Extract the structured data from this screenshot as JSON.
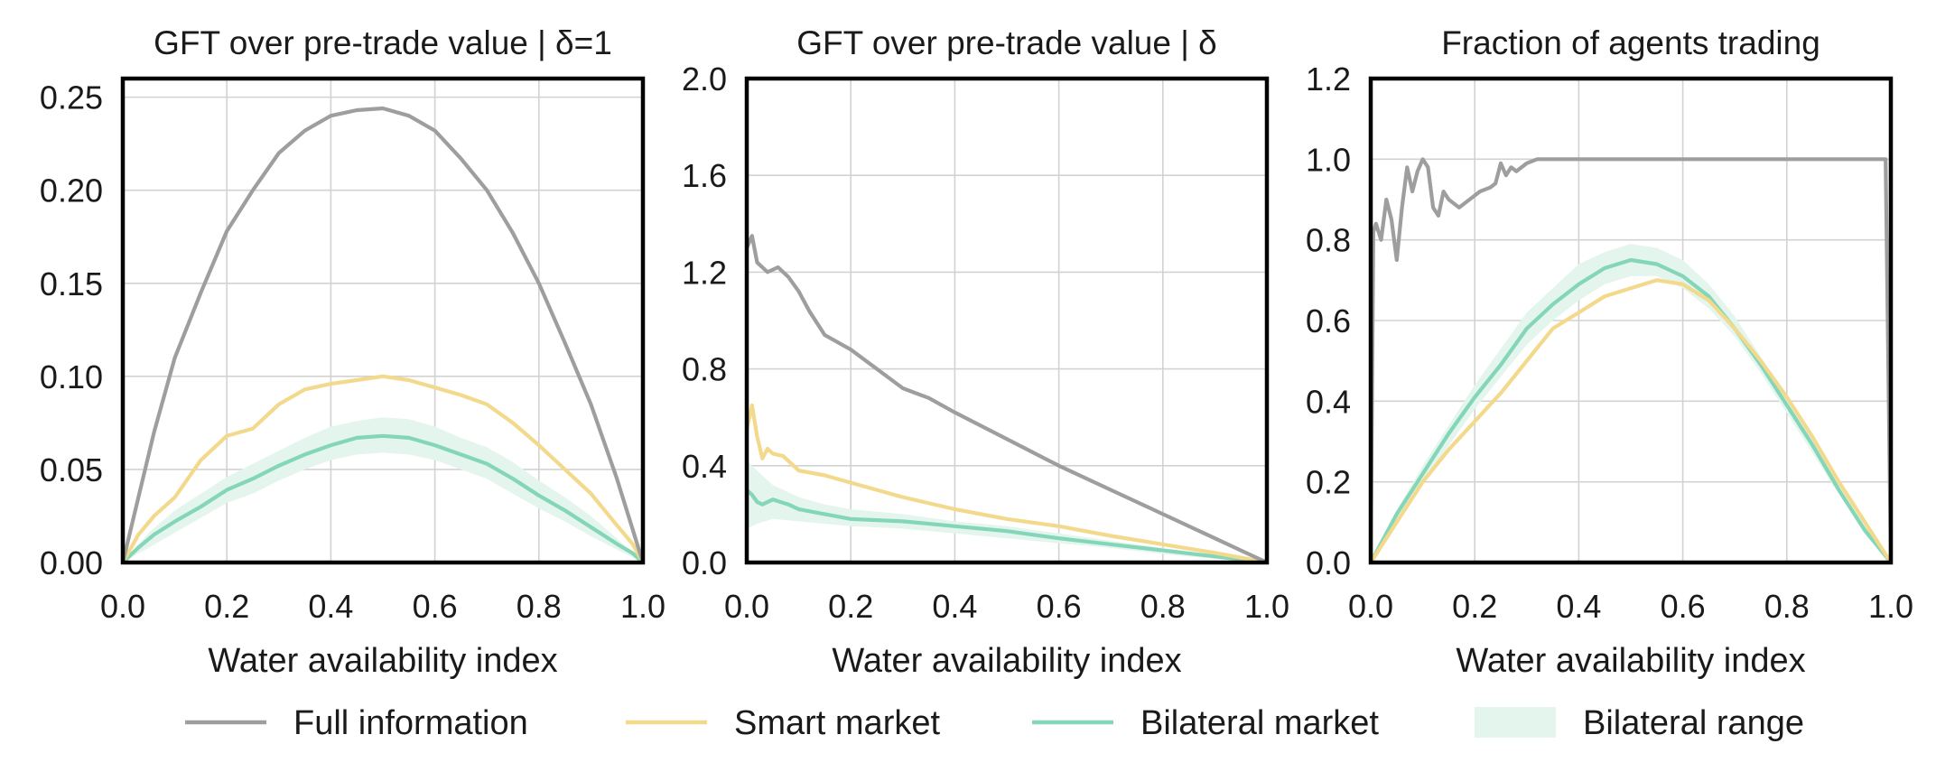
{
  "figure": {
    "xlabel": "Water availability index",
    "legend": [
      {
        "key": "full",
        "label": "Full information",
        "kind": "line"
      },
      {
        "key": "smart",
        "label": "Smart market",
        "kind": "line"
      },
      {
        "key": "bilateral",
        "label": "Bilateral market",
        "kind": "line"
      },
      {
        "key": "range",
        "label": "Bilateral range",
        "kind": "patch"
      }
    ]
  },
  "colors": {
    "full": "#9e9e9e",
    "smart": "#f3d98b",
    "bilateral": "#84d6b8",
    "range": "#e4f5ee",
    "grid": "#d2d2d2",
    "frame": "#000000"
  },
  "chart_data": [
    {
      "type": "line",
      "title": "GFT over pre-trade value | δ=1",
      "xlabel": "Water availability index",
      "xlim": [
        0,
        1
      ],
      "ylim": [
        0,
        0.26
      ],
      "xticks": [
        0.0,
        0.2,
        0.4,
        0.6,
        0.8,
        1.0
      ],
      "xtick_labels": [
        "0.0",
        "0.2",
        "0.4",
        "0.6",
        "0.8",
        "1.0"
      ],
      "yticks": [
        0.0,
        0.05,
        0.1,
        0.15,
        0.2,
        0.25
      ],
      "ytick_labels": [
        "0.00",
        "0.05",
        "0.10",
        "0.15",
        "0.20",
        "0.25"
      ],
      "grid": true,
      "series": [
        {
          "key": "full",
          "name": "Full information",
          "x": [
            0.0,
            0.03,
            0.06,
            0.1,
            0.15,
            0.2,
            0.25,
            0.3,
            0.35,
            0.4,
            0.45,
            0.5,
            0.55,
            0.6,
            0.65,
            0.7,
            0.75,
            0.8,
            0.85,
            0.9,
            0.95,
            0.98,
            1.0
          ],
          "y": [
            0.0,
            0.035,
            0.07,
            0.11,
            0.145,
            0.178,
            0.2,
            0.22,
            0.232,
            0.24,
            0.243,
            0.244,
            0.24,
            0.232,
            0.217,
            0.2,
            0.177,
            0.15,
            0.118,
            0.085,
            0.045,
            0.018,
            0.0
          ]
        },
        {
          "key": "smart",
          "name": "Smart market",
          "x": [
            0.0,
            0.03,
            0.06,
            0.1,
            0.15,
            0.2,
            0.25,
            0.3,
            0.35,
            0.4,
            0.45,
            0.5,
            0.55,
            0.6,
            0.65,
            0.7,
            0.75,
            0.8,
            0.85,
            0.9,
            0.95,
            0.98,
            1.0
          ],
          "y": [
            0.0,
            0.015,
            0.025,
            0.035,
            0.055,
            0.068,
            0.072,
            0.085,
            0.093,
            0.096,
            0.098,
            0.1,
            0.098,
            0.094,
            0.09,
            0.085,
            0.075,
            0.063,
            0.05,
            0.037,
            0.02,
            0.01,
            0.0
          ]
        },
        {
          "key": "bilateral",
          "name": "Bilateral market",
          "x": [
            0.0,
            0.03,
            0.06,
            0.1,
            0.15,
            0.2,
            0.25,
            0.3,
            0.35,
            0.4,
            0.45,
            0.5,
            0.55,
            0.6,
            0.65,
            0.7,
            0.75,
            0.8,
            0.85,
            0.9,
            0.95,
            0.98,
            1.0
          ],
          "y": [
            0.0,
            0.008,
            0.015,
            0.022,
            0.03,
            0.039,
            0.045,
            0.052,
            0.058,
            0.063,
            0.067,
            0.068,
            0.067,
            0.063,
            0.058,
            0.053,
            0.045,
            0.036,
            0.028,
            0.019,
            0.01,
            0.005,
            0.0
          ]
        },
        {
          "key": "range",
          "name": "Bilateral range",
          "kind": "band",
          "x": [
            0.0,
            0.05,
            0.1,
            0.15,
            0.2,
            0.25,
            0.3,
            0.35,
            0.4,
            0.45,
            0.5,
            0.55,
            0.6,
            0.65,
            0.7,
            0.75,
            0.8,
            0.85,
            0.9,
            0.95,
            1.0
          ],
          "low": [
            0.0,
            0.008,
            0.016,
            0.024,
            0.032,
            0.037,
            0.044,
            0.05,
            0.055,
            0.058,
            0.059,
            0.058,
            0.055,
            0.05,
            0.045,
            0.037,
            0.029,
            0.022,
            0.014,
            0.007,
            0.0
          ],
          "high": [
            0.0,
            0.016,
            0.028,
            0.037,
            0.046,
            0.053,
            0.06,
            0.067,
            0.073,
            0.076,
            0.078,
            0.077,
            0.073,
            0.067,
            0.062,
            0.054,
            0.044,
            0.035,
            0.025,
            0.013,
            0.0
          ]
        }
      ]
    },
    {
      "type": "line",
      "title": "GFT over pre-trade value | δ",
      "xlabel": "Water availability index",
      "xlim": [
        0,
        1
      ],
      "ylim": [
        0,
        2.0
      ],
      "xticks": [
        0.0,
        0.2,
        0.4,
        0.6,
        0.8,
        1.0
      ],
      "xtick_labels": [
        "0.0",
        "0.2",
        "0.4",
        "0.6",
        "0.8",
        "1.0"
      ],
      "yticks": [
        0.0,
        0.4,
        0.8,
        1.2,
        1.6,
        2.0
      ],
      "ytick_labels": [
        "0.0",
        "0.4",
        "0.8",
        "1.2",
        "1.6",
        "2.0"
      ],
      "grid": true,
      "series": [
        {
          "key": "full",
          "name": "Full information",
          "x": [
            0.0,
            0.01,
            0.02,
            0.04,
            0.06,
            0.08,
            0.1,
            0.12,
            0.15,
            0.2,
            0.25,
            0.3,
            0.35,
            0.4,
            0.5,
            0.6,
            0.7,
            0.8,
            0.9,
            0.95,
            1.0
          ],
          "y": [
            1.3,
            1.35,
            1.24,
            1.2,
            1.22,
            1.18,
            1.12,
            1.04,
            0.94,
            0.88,
            0.8,
            0.72,
            0.68,
            0.62,
            0.51,
            0.4,
            0.3,
            0.2,
            0.1,
            0.05,
            0.0
          ]
        },
        {
          "key": "smart",
          "name": "Smart market",
          "x": [
            0.0,
            0.01,
            0.02,
            0.03,
            0.04,
            0.05,
            0.07,
            0.1,
            0.15,
            0.2,
            0.3,
            0.4,
            0.5,
            0.6,
            0.7,
            0.8,
            0.9,
            1.0
          ],
          "y": [
            0.55,
            0.65,
            0.52,
            0.43,
            0.47,
            0.45,
            0.44,
            0.38,
            0.36,
            0.33,
            0.27,
            0.22,
            0.18,
            0.15,
            0.11,
            0.075,
            0.04,
            0.0
          ]
        },
        {
          "key": "bilateral",
          "name": "Bilateral market",
          "x": [
            0.0,
            0.01,
            0.02,
            0.03,
            0.05,
            0.08,
            0.1,
            0.15,
            0.2,
            0.3,
            0.4,
            0.5,
            0.6,
            0.7,
            0.8,
            0.9,
            1.0
          ],
          "y": [
            0.3,
            0.28,
            0.25,
            0.24,
            0.26,
            0.24,
            0.22,
            0.2,
            0.18,
            0.17,
            0.15,
            0.13,
            0.1,
            0.075,
            0.05,
            0.025,
            0.0
          ]
        },
        {
          "key": "range",
          "name": "Bilateral range",
          "kind": "band",
          "x": [
            0.0,
            0.02,
            0.05,
            0.1,
            0.15,
            0.2,
            0.3,
            0.4,
            0.5,
            0.6,
            0.7,
            0.8,
            0.9,
            1.0
          ],
          "low": [
            0.14,
            0.16,
            0.18,
            0.17,
            0.16,
            0.15,
            0.14,
            0.12,
            0.1,
            0.08,
            0.06,
            0.035,
            0.015,
            0.0
          ],
          "high": [
            0.42,
            0.38,
            0.32,
            0.27,
            0.24,
            0.22,
            0.2,
            0.17,
            0.15,
            0.12,
            0.09,
            0.06,
            0.03,
            0.0
          ]
        }
      ]
    },
    {
      "type": "line",
      "title": "Fraction of agents trading",
      "xlabel": "Water availability index",
      "xlim": [
        0,
        1
      ],
      "ylim": [
        0,
        1.2
      ],
      "xticks": [
        0.0,
        0.2,
        0.4,
        0.6,
        0.8,
        1.0
      ],
      "xtick_labels": [
        "0.0",
        "0.2",
        "0.4",
        "0.6",
        "0.8",
        "1.0"
      ],
      "yticks": [
        0.0,
        0.2,
        0.4,
        0.6,
        0.8,
        1.0,
        1.2
      ],
      "ytick_labels": [
        "0.0",
        "0.2",
        "0.4",
        "0.6",
        "0.8",
        "1.0",
        "1.2"
      ],
      "grid": true,
      "series": [
        {
          "key": "full",
          "name": "Full information",
          "x": [
            0.0,
            0.005,
            0.01,
            0.02,
            0.03,
            0.04,
            0.05,
            0.06,
            0.07,
            0.08,
            0.09,
            0.1,
            0.11,
            0.12,
            0.13,
            0.14,
            0.15,
            0.17,
            0.19,
            0.21,
            0.23,
            0.24,
            0.25,
            0.26,
            0.27,
            0.28,
            0.3,
            0.32,
            0.35,
            0.4,
            0.6,
            0.8,
            0.99,
            1.0
          ],
          "y": [
            0.0,
            0.82,
            0.84,
            0.8,
            0.9,
            0.85,
            0.75,
            0.88,
            0.98,
            0.92,
            0.97,
            1.0,
            0.98,
            0.88,
            0.86,
            0.92,
            0.9,
            0.88,
            0.9,
            0.92,
            0.93,
            0.94,
            0.99,
            0.96,
            0.98,
            0.97,
            0.99,
            1.0,
            1.0,
            1.0,
            1.0,
            1.0,
            1.0,
            0.0
          ]
        },
        {
          "key": "smart",
          "name": "Smart market",
          "x": [
            0.0,
            0.05,
            0.1,
            0.15,
            0.2,
            0.25,
            0.3,
            0.35,
            0.4,
            0.45,
            0.5,
            0.55,
            0.6,
            0.65,
            0.7,
            0.75,
            0.8,
            0.85,
            0.9,
            0.95,
            1.0
          ],
          "y": [
            0.0,
            0.1,
            0.2,
            0.28,
            0.35,
            0.42,
            0.5,
            0.58,
            0.62,
            0.66,
            0.68,
            0.7,
            0.69,
            0.65,
            0.58,
            0.5,
            0.41,
            0.31,
            0.2,
            0.1,
            0.0
          ]
        },
        {
          "key": "bilateral",
          "name": "Bilateral market",
          "x": [
            0.0,
            0.05,
            0.1,
            0.15,
            0.2,
            0.25,
            0.3,
            0.35,
            0.4,
            0.45,
            0.5,
            0.55,
            0.6,
            0.65,
            0.7,
            0.75,
            0.8,
            0.85,
            0.9,
            0.95,
            1.0
          ],
          "y": [
            0.0,
            0.12,
            0.22,
            0.32,
            0.41,
            0.49,
            0.58,
            0.64,
            0.69,
            0.73,
            0.75,
            0.74,
            0.71,
            0.66,
            0.58,
            0.49,
            0.39,
            0.29,
            0.18,
            0.08,
            0.0
          ]
        },
        {
          "key": "range",
          "name": "Bilateral range",
          "kind": "band",
          "x": [
            0.0,
            0.05,
            0.1,
            0.15,
            0.2,
            0.25,
            0.3,
            0.35,
            0.4,
            0.45,
            0.5,
            0.55,
            0.6,
            0.65,
            0.7,
            0.75,
            0.8,
            0.85,
            0.9,
            0.95,
            1.0
          ],
          "low": [
            0.0,
            0.11,
            0.2,
            0.29,
            0.38,
            0.46,
            0.54,
            0.6,
            0.65,
            0.69,
            0.71,
            0.71,
            0.68,
            0.63,
            0.56,
            0.47,
            0.37,
            0.27,
            0.17,
            0.07,
            0.0
          ],
          "high": [
            0.0,
            0.13,
            0.24,
            0.34,
            0.44,
            0.53,
            0.62,
            0.68,
            0.74,
            0.77,
            0.79,
            0.78,
            0.75,
            0.69,
            0.61,
            0.51,
            0.41,
            0.31,
            0.19,
            0.09,
            0.0
          ]
        }
      ]
    }
  ]
}
